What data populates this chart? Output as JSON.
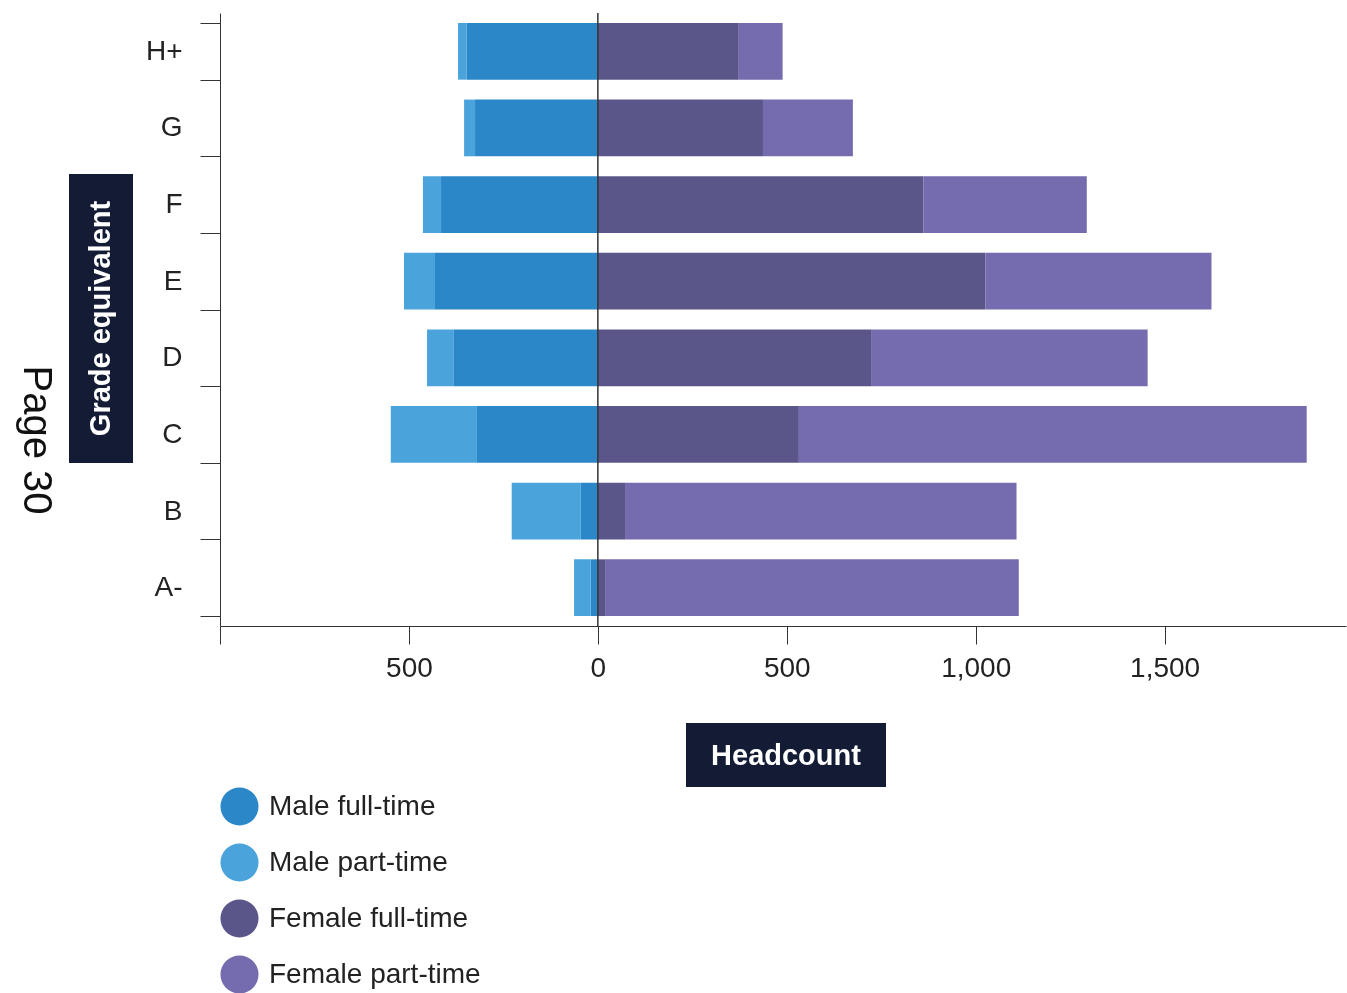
{
  "chart_data": {
    "type": "bar",
    "orientation": "horizontal",
    "stacked": true,
    "xlabel": "Headcount",
    "ylabel": "Grade equivalent",
    "annotations": [
      "Page 30"
    ],
    "categories": [
      "H+",
      "G",
      "F",
      "E",
      "D",
      "C",
      "B",
      "A-"
    ],
    "series": [
      {
        "name": "Male full-time",
        "color": "#2b87c8",
        "values": [
          -347,
          -325,
          -415,
          -431,
          -381,
          -320,
          -45,
          -19
        ]
      },
      {
        "name": "Male part-time",
        "color": "#4aa3db",
        "values": [
          -23,
          -29,
          -48,
          -82,
          -71,
          -228,
          -183,
          -44
        ]
      },
      {
        "name": "Female full-time",
        "color": "#5b5689",
        "values": [
          373,
          437,
          862,
          1026,
          725,
          532,
          74,
          21
        ]
      },
      {
        "name": "Female part-time",
        "color": "#746cae",
        "values": [
          116,
          238,
          432,
          598,
          730,
          1344,
          1034,
          1093
        ]
      }
    ],
    "xlim": [
      -1000,
      1980
    ],
    "xticks": [
      {
        "value": -1000,
        "label": null
      },
      {
        "value": -500,
        "label": "500"
      },
      0,
      500,
      {
        "value": 1000,
        "label": "1,000"
      },
      {
        "value": 1500,
        "label": "1,500"
      }
    ],
    "ref_lines": [
      {
        "axis": "x",
        "value": 0,
        "color": "#333333"
      }
    ],
    "grid": false,
    "legend": "bottom left"
  }
}
